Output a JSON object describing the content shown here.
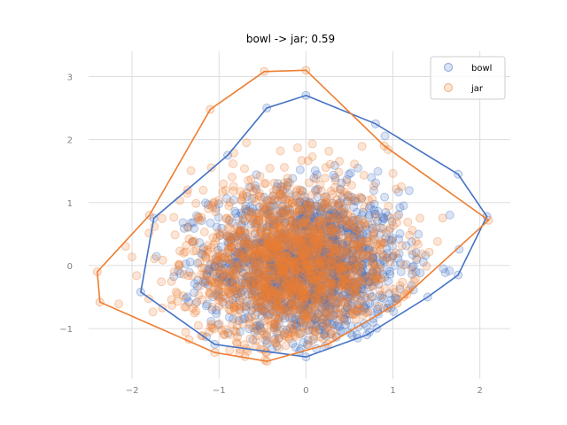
{
  "chart_data": {
    "type": "scatter",
    "title": "bowl -> jar; 0.59",
    "xlabel": "",
    "ylabel": "",
    "xlim": [
      -2.5,
      2.35
    ],
    "ylim": [
      -1.8,
      3.4
    ],
    "xticks": [
      -2,
      -1,
      0,
      1,
      2
    ],
    "yticks": [
      -1,
      0,
      1,
      2,
      3
    ],
    "grid": true,
    "legend_position": "top-right",
    "series": [
      {
        "name": "bowl",
        "color": "#4472C4",
        "count": 1600,
        "center": [
          0.0,
          0.0
        ],
        "spread": [
          0.55,
          0.6
        ],
        "hull": [
          [
            0.0,
            2.7
          ],
          [
            0.8,
            2.25
          ],
          [
            1.75,
            1.45
          ],
          [
            2.08,
            0.78
          ],
          [
            1.75,
            -0.15
          ],
          [
            1.4,
            -0.5
          ],
          [
            0.7,
            -1.1
          ],
          [
            0.0,
            -1.45
          ],
          [
            -1.05,
            -1.25
          ],
          [
            -1.9,
            -0.42
          ],
          [
            -1.75,
            0.75
          ],
          [
            -0.9,
            1.75
          ],
          [
            -0.45,
            2.5
          ]
        ]
      },
      {
        "name": "jar",
        "color": "#ED7D31",
        "count": 1600,
        "center": [
          -0.15,
          0.0
        ],
        "spread": [
          0.6,
          0.65
        ],
        "hull": [
          [
            0.0,
            3.1
          ],
          [
            -0.48,
            3.08
          ],
          [
            -1.1,
            2.48
          ],
          [
            -1.8,
            0.8
          ],
          [
            -2.4,
            -0.1
          ],
          [
            -2.37,
            -0.58
          ],
          [
            -1.05,
            -1.38
          ],
          [
            -0.45,
            -1.52
          ],
          [
            0.25,
            -1.25
          ],
          [
            1.05,
            -0.6
          ],
          [
            2.1,
            0.72
          ],
          [
            0.9,
            1.9
          ]
        ]
      }
    ]
  }
}
